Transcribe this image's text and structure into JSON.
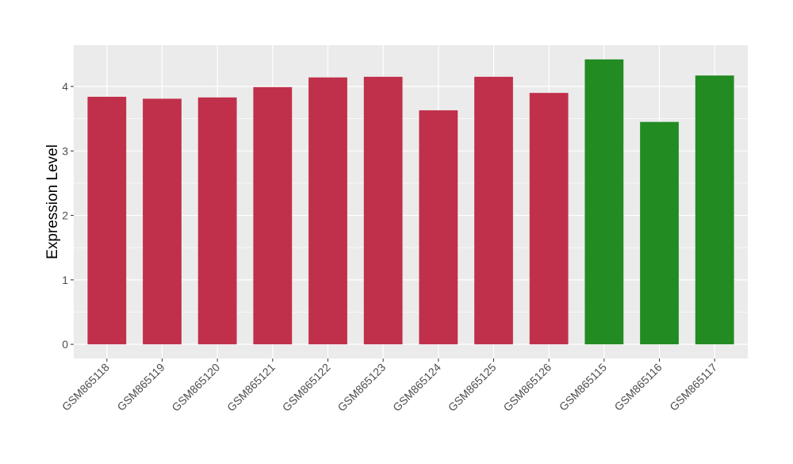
{
  "chart_data": {
    "type": "bar",
    "title": "",
    "xlabel": "",
    "ylabel": "Expression Level",
    "categories": [
      "GSM865118",
      "GSM865119",
      "GSM865120",
      "GSM865121",
      "GSM865122",
      "GSM865123",
      "GSM865124",
      "GSM865125",
      "GSM865126",
      "GSM865115",
      "GSM865116",
      "GSM865117"
    ],
    "values": [
      3.84,
      3.81,
      3.83,
      3.99,
      4.14,
      4.15,
      3.63,
      4.15,
      3.9,
      4.42,
      3.45,
      4.17
    ],
    "bar_colors": [
      "#c0304a",
      "#c0304a",
      "#c0304a",
      "#c0304a",
      "#c0304a",
      "#c0304a",
      "#c0304a",
      "#c0304a",
      "#c0304a",
      "#228b22",
      "#228b22",
      "#228b22"
    ],
    "yticks": [
      0,
      1,
      2,
      3,
      4
    ],
    "ylim": [
      -0.22,
      4.64
    ],
    "grid": true,
    "panel_background": "#ebebeb",
    "gridline_color": "#ffffff"
  }
}
